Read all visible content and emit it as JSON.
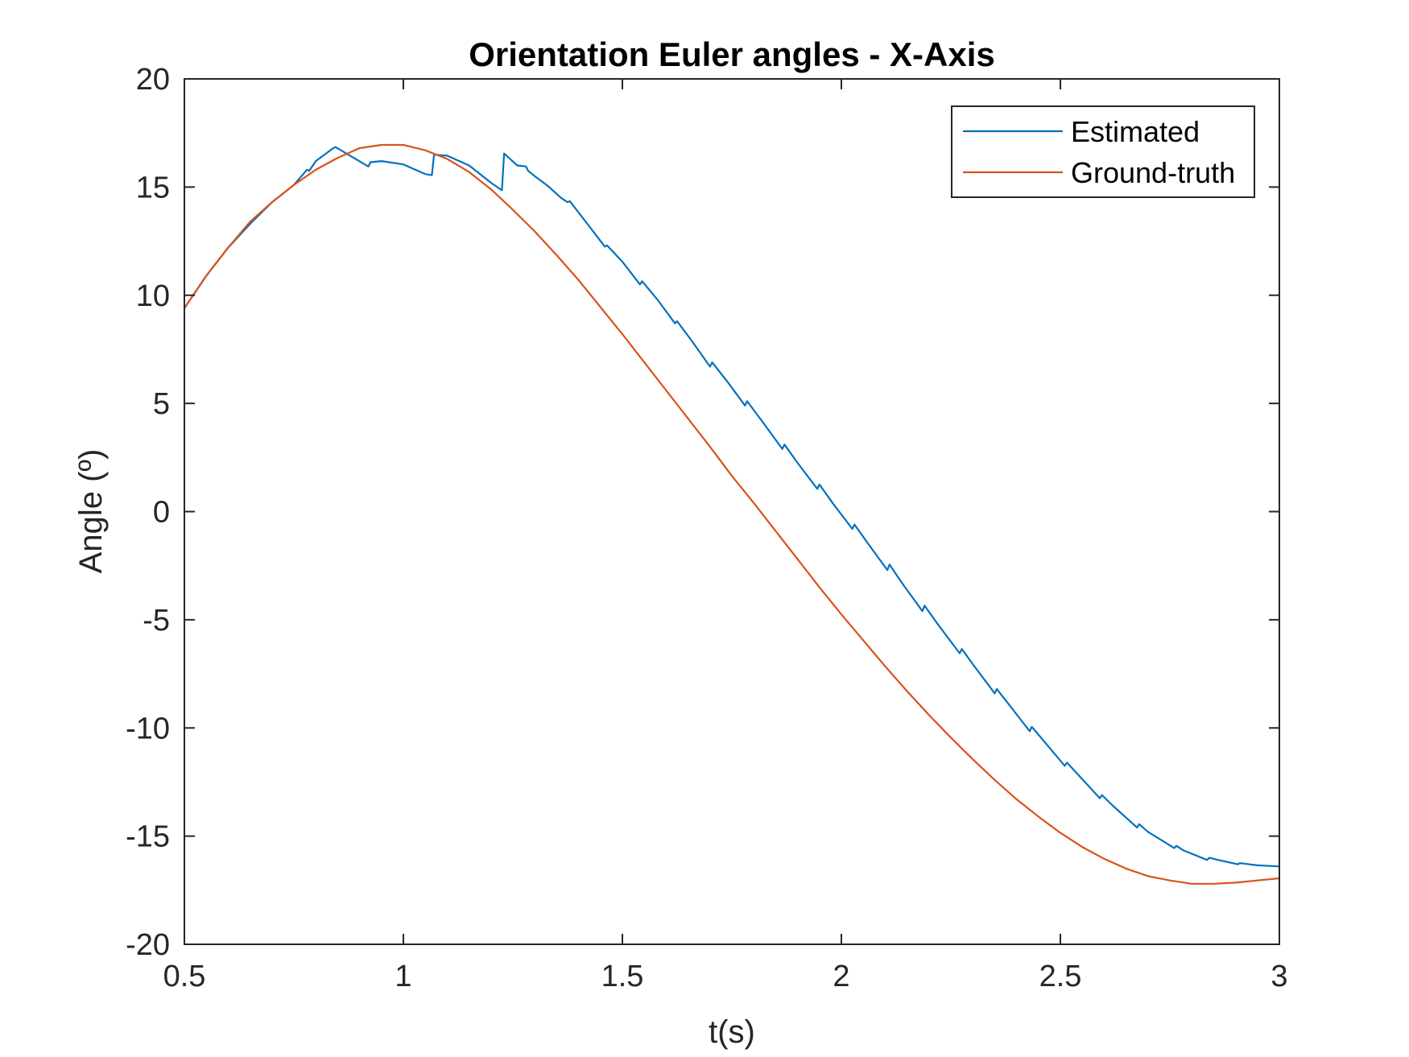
{
  "chart_data": {
    "type": "line",
    "title": "Orientation Euler angles - X-Axis",
    "xlabel": "t(s)",
    "ylabel": "Angle (º)",
    "xlim": [
      0.5,
      3
    ],
    "ylim": [
      -20,
      20
    ],
    "xticks": [
      0.5,
      1,
      1.5,
      2,
      2.5,
      3
    ],
    "xtick_labels": [
      "0.5",
      "1",
      "1.5",
      "2",
      "2.5",
      "3"
    ],
    "yticks": [
      -20,
      -15,
      -10,
      -5,
      0,
      5,
      10,
      15,
      20
    ],
    "ytick_labels": [
      "-20",
      "-15",
      "-10",
      "-5",
      "0",
      "5",
      "10",
      "15",
      "20"
    ],
    "grid": false,
    "legend_position": "top-right",
    "series": [
      {
        "name": "Estimated",
        "color": "#0072BD",
        "x": [
          0.5,
          0.55,
          0.6,
          0.65,
          0.7,
          0.75,
          0.78,
          0.785,
          0.8,
          0.84,
          0.845,
          0.92,
          0.925,
          0.95,
          1.0,
          1.05,
          1.065,
          1.07,
          1.1,
          1.15,
          1.2,
          1.225,
          1.23,
          1.26,
          1.28,
          1.285,
          1.3,
          1.33,
          1.36,
          1.375,
          1.38,
          1.42,
          1.46,
          1.465,
          1.5,
          1.54,
          1.545,
          1.58,
          1.62,
          1.625,
          1.66,
          1.7,
          1.705,
          1.74,
          1.78,
          1.785,
          1.82,
          1.865,
          1.87,
          1.9,
          1.945,
          1.95,
          1.98,
          2.025,
          2.03,
          2.06,
          2.105,
          2.11,
          2.14,
          2.185,
          2.19,
          2.22,
          2.27,
          2.275,
          2.3,
          2.35,
          2.355,
          2.38,
          2.43,
          2.435,
          2.46,
          2.51,
          2.515,
          2.54,
          2.59,
          2.595,
          2.62,
          2.675,
          2.68,
          2.7,
          2.76,
          2.765,
          2.78,
          2.835,
          2.84,
          2.86,
          2.905,
          2.91,
          2.95,
          3.0
        ],
        "y": [
          9.4,
          10.9,
          12.2,
          13.3,
          14.3,
          15.1,
          15.8,
          15.75,
          16.2,
          16.8,
          16.85,
          15.95,
          16.15,
          16.2,
          16.05,
          15.6,
          15.55,
          16.5,
          16.45,
          16.0,
          15.2,
          14.85,
          16.55,
          16.0,
          15.95,
          15.75,
          15.5,
          15.05,
          14.5,
          14.3,
          14.35,
          13.3,
          12.25,
          12.3,
          11.55,
          10.5,
          10.65,
          9.8,
          8.7,
          8.8,
          7.85,
          6.7,
          6.9,
          6.0,
          4.9,
          5.1,
          4.15,
          2.9,
          3.1,
          2.25,
          1.05,
          1.25,
          0.4,
          -0.8,
          -0.6,
          -1.45,
          -2.7,
          -2.45,
          -3.35,
          -4.6,
          -4.35,
          -5.2,
          -6.55,
          -6.35,
          -7.05,
          -8.4,
          -8.2,
          -8.85,
          -10.15,
          -9.95,
          -10.55,
          -11.75,
          -11.6,
          -12.15,
          -13.25,
          -13.1,
          -13.6,
          -14.6,
          -14.45,
          -14.8,
          -15.55,
          -15.45,
          -15.65,
          -16.1,
          -16.0,
          -16.1,
          -16.3,
          -16.25,
          -16.35,
          -16.4
        ]
      },
      {
        "name": "Ground-truth",
        "color": "#D95319",
        "x": [
          0.5,
          0.55,
          0.6,
          0.65,
          0.7,
          0.75,
          0.8,
          0.85,
          0.9,
          0.95,
          1.0,
          1.05,
          1.1,
          1.15,
          1.2,
          1.25,
          1.3,
          1.35,
          1.4,
          1.45,
          1.5,
          1.55,
          1.6,
          1.65,
          1.7,
          1.75,
          1.8,
          1.85,
          1.9,
          1.95,
          2.0,
          2.05,
          2.1,
          2.15,
          2.2,
          2.25,
          2.3,
          2.35,
          2.4,
          2.45,
          2.5,
          2.55,
          2.6,
          2.65,
          2.7,
          2.75,
          2.8,
          2.85,
          2.9,
          2.95,
          3.0
        ],
        "y": [
          9.4,
          10.9,
          12.2,
          13.4,
          14.3,
          15.1,
          15.8,
          16.35,
          16.8,
          16.95,
          16.95,
          16.7,
          16.3,
          15.7,
          14.9,
          13.95,
          12.95,
          11.85,
          10.7,
          9.45,
          8.2,
          6.9,
          5.6,
          4.3,
          3.0,
          1.65,
          0.4,
          -0.9,
          -2.2,
          -3.5,
          -4.75,
          -5.95,
          -7.15,
          -8.3,
          -9.4,
          -10.45,
          -11.45,
          -12.4,
          -13.3,
          -14.1,
          -14.85,
          -15.5,
          -16.05,
          -16.5,
          -16.85,
          -17.05,
          -17.2,
          -17.2,
          -17.15,
          -17.05,
          -16.95
        ]
      }
    ]
  }
}
